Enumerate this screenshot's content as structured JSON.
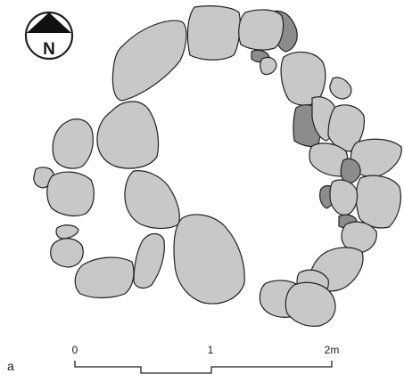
{
  "figure": {
    "panel_label": "a",
    "north_label": "N",
    "colors": {
      "stone": "#c8c8c8",
      "stone_dark": "#8c8c8c",
      "outline": "#222222",
      "background": "#ffffff"
    }
  },
  "scale_bar": {
    "ticks": [
      "0",
      "1",
      "2m"
    ],
    "length_m": 2
  },
  "stones": {
    "count": 47,
    "dark_count": 7
  }
}
